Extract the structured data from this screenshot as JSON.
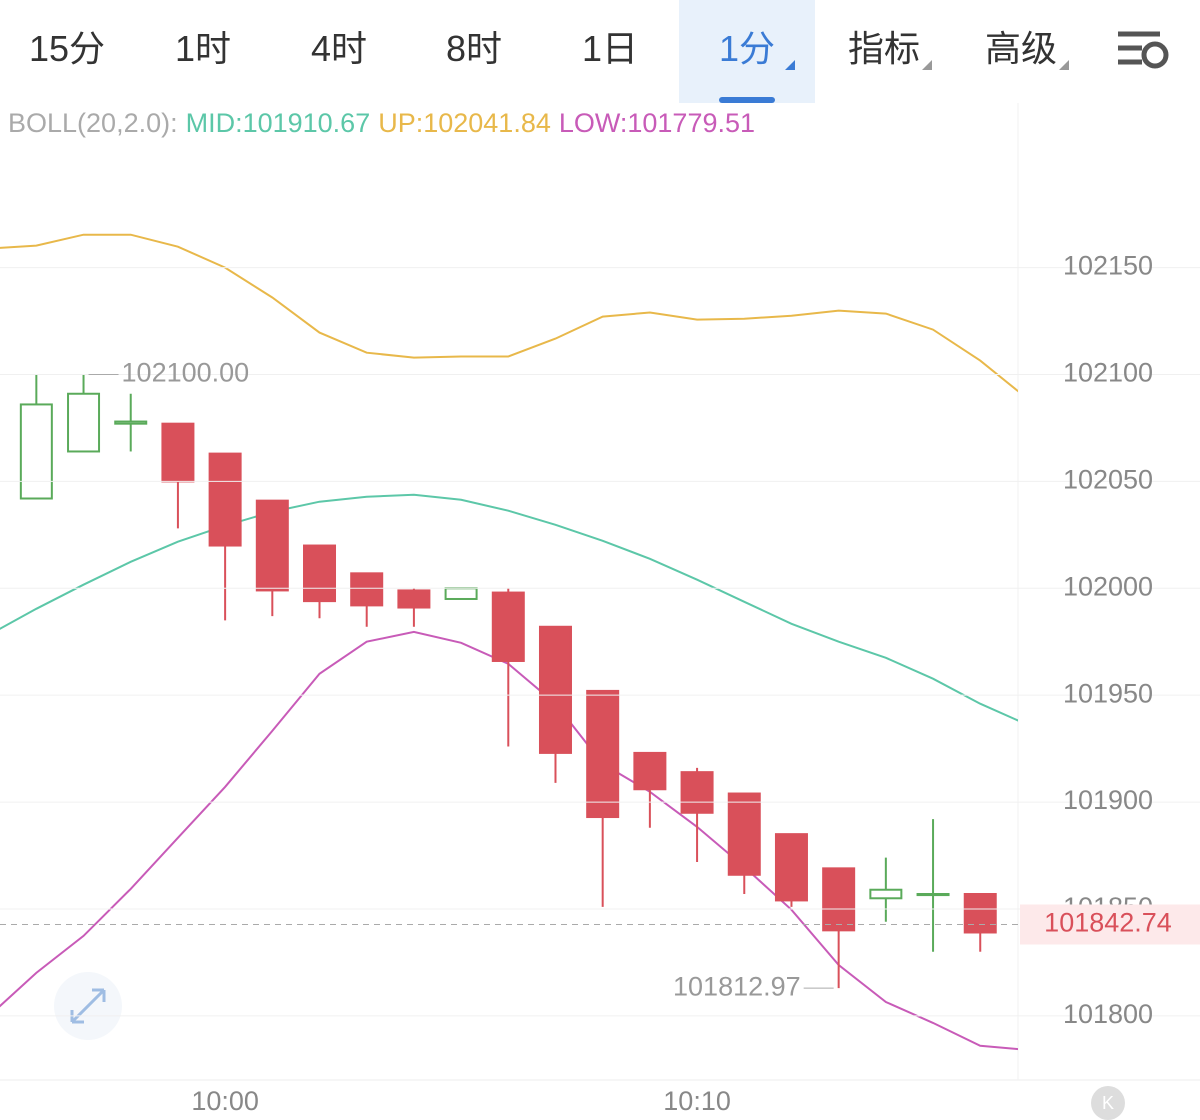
{
  "header": {
    "tabs": [
      "15分",
      "1时",
      "4时",
      "8时",
      "1日",
      "1分",
      "指标",
      "高级"
    ],
    "active": 5
  },
  "indicator": {
    "label": "BOLL(20,2.0):",
    "items": [
      {
        "text": "MID:101910.67",
        "color": "#5cc7a8"
      },
      {
        "text": "UP:102041.84",
        "color": "#e8b84a"
      },
      {
        "text": "LOW:101779.51",
        "color": "#c85bb8"
      }
    ]
  },
  "chart_data": {
    "type": "candlestick",
    "x": [
      596,
      597,
      598,
      599,
      600,
      601,
      602,
      603,
      604,
      605,
      606,
      607,
      608,
      609,
      610,
      611,
      612,
      613,
      614,
      615,
      616
    ],
    "open": [
      102042,
      102064,
      102077,
      102077,
      102063,
      102041,
      102020,
      102007,
      101999,
      101995,
      101998,
      101982,
      101952,
      101923,
      101914,
      101904,
      101885,
      101869,
      101855,
      101856.5,
      101857
    ],
    "high": [
      102100,
      102100,
      102091,
      102077,
      102063,
      102041,
      102020,
      102007,
      102000,
      102000,
      102000,
      101982,
      101952,
      101923,
      101916,
      101904,
      101885,
      101869,
      101874,
      101892,
      101857
    ],
    "low": [
      102042,
      102064,
      102064,
      102028,
      101985,
      101987,
      101986,
      101982,
      101982,
      101995,
      101926,
      101909,
      101851,
      101888,
      101872,
      101857,
      101851,
      101812.97,
      101844,
      101830,
      101830
    ],
    "close": [
      102086,
      102091,
      102078,
      102050,
      102020,
      101999,
      101994,
      101992,
      101991,
      102000,
      101966,
      101923,
      101893,
      101906,
      101895,
      101866,
      101854,
      101840,
      101859,
      101857,
      101839
    ],
    "up_color": "#5aaa5a",
    "down_color": "#d9505a",
    "band_x": [
      595,
      596,
      597,
      598,
      599,
      600,
      601,
      602,
      603,
      604,
      605,
      606,
      607,
      608,
      609,
      610,
      611,
      612,
      613,
      614,
      615,
      616,
      617
    ],
    "bands": [
      {
        "color": "#e8b84a",
        "values": [
          102158.9,
          102160.3,
          102165.4,
          102165.4,
          102159.8,
          102150,
          102136,
          102119.6,
          102110.2,
          102107.9,
          102108.4,
          102108.4,
          102116.8,
          102127.1,
          102129,
          102125.7,
          102126.1,
          102127.5,
          102129.9,
          102128.5,
          102121,
          102106.5,
          102088.7
        ]
      },
      {
        "color": "#5cc7a8",
        "values": [
          101978.3,
          101990.4,
          102001.7,
          102012.4,
          102021.8,
          102029.3,
          102035.8,
          102040.5,
          102042.8,
          102043.8,
          102041.4,
          102036.3,
          102029.7,
          102022.2,
          102013.8,
          102004,
          101993.7,
          101983.4,
          101975,
          101967.5,
          101957.7,
          101946,
          101936.2
        ]
      },
      {
        "color": "#c85bb8",
        "values": [
          101800,
          101820.1,
          101837.4,
          101859.4,
          101883.3,
          101907.1,
          101933.3,
          101960,
          101975,
          101979.6,
          101974.5,
          101964.7,
          101946,
          101917.9,
          101904.8,
          101888.4,
          101869.7,
          101849.6,
          101823.8,
          101806.5,
          101796.7,
          101786,
          101784.1
        ]
      }
    ],
    "annotations": [
      {
        "x": 597,
        "value": 102100,
        "label": "102100.00"
      },
      {
        "x": 613,
        "value": 101812.97,
        "label": "101812.97"
      }
    ],
    "last_price": 101842.74,
    "xlim": [
      595.23,
      616.8
    ],
    "xticks": [
      {
        "value": 600,
        "label": "10:00"
      },
      {
        "value": 610,
        "label": "10:10"
      }
    ],
    "ylim": [
      101770,
      102227
    ],
    "yticks": [
      101800,
      101850,
      101900,
      101950,
      102000,
      102050,
      102100,
      102150
    ],
    "grid": true
  }
}
